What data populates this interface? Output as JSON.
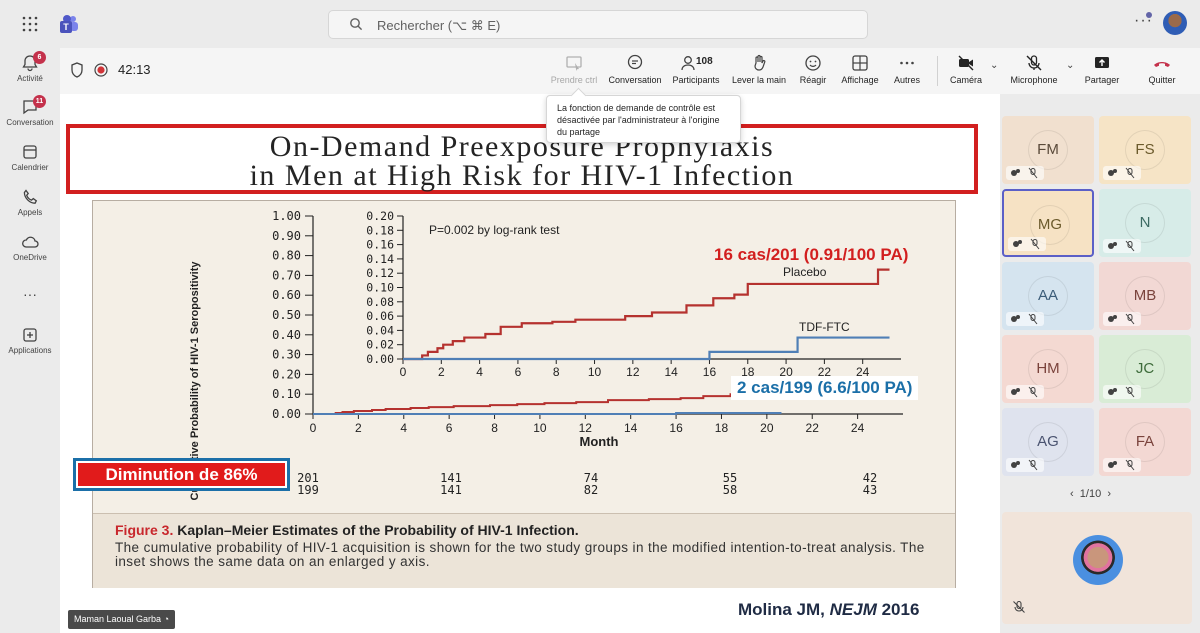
{
  "search": {
    "placeholder": "Rechercher (⌥ ⌘ E)"
  },
  "rail": {
    "items": [
      {
        "label": "Activité",
        "badge": "6",
        "icon": "bell-icon"
      },
      {
        "label": "Conversation",
        "badge": "11",
        "icon": "chat-icon"
      },
      {
        "label": "Calendrier",
        "badge": "",
        "icon": "calendar-icon"
      },
      {
        "label": "Appels",
        "badge": "",
        "icon": "phone-icon"
      },
      {
        "label": "OneDrive",
        "badge": "",
        "icon": "cloud-icon"
      },
      {
        "label": "Applications",
        "badge": "",
        "icon": "add-icon"
      }
    ]
  },
  "callbar": {
    "timer": "42:13",
    "buttons": {
      "prendre": "Prendre ctrl",
      "conversation": "Conversation",
      "participants": "Participants",
      "participants_count": "108",
      "lever": "Lever la main",
      "reagir": "Réagir",
      "affichage": "Affichage",
      "autres": "Autres",
      "camera": "Caméra",
      "micro": "Microphone",
      "partager": "Partager",
      "quitter": "Quitter"
    }
  },
  "tooltip": {
    "text": "La fonction de demande de contrôle est désactivée par l'administrateur à l'origine du partage"
  },
  "slide": {
    "title_line1": "On-Demand Preexposure Prophylaxis",
    "title_line2": "in Men at High Risk for HIV-1 Infection",
    "placebo_annotation": "16 cas/201 (0.91/100 PA)",
    "tdf_annotation": "2 cas/199 (6.6/100 PA)",
    "diminution": "Diminution de 86%",
    "citation_author": "Molina JM, ",
    "citation_journal": "NEJM",
    "citation_year": " 2016",
    "fig_label": "Figure 3.",
    "fig_title": " Kaplan–Meier Estimates of the Probability of HIV-1 Infection.",
    "fig_text": "The cumulative probability of HIV-1 acquisition is shown for the two study groups in the modified intention-to-treat analysis. The inset shows the same data on an enlarged y axis.",
    "risk_row1": [
      "201",
      "141",
      "74",
      "55",
      "42"
    ],
    "risk_row2": [
      "199",
      "141",
      "82",
      "58",
      "43"
    ],
    "presenter": "Maman Laoual Garba"
  },
  "chart_data": {
    "type": "line",
    "title": "Kaplan–Meier Estimates of the Probability of HIV-1 Infection",
    "ylabel": "Cumulative Probability of HIV-1 Seropositivity",
    "xlabel": "Month",
    "x_ticks": [
      0,
      2,
      4,
      6,
      8,
      10,
      12,
      14,
      16,
      18,
      20,
      22,
      24
    ],
    "main": {
      "ylim": [
        0,
        1.0
      ],
      "y_ticks": [
        "0.00",
        "0.10",
        "0.20",
        "0.30",
        "0.40",
        "0.50",
        "0.60",
        "0.70",
        "0.80",
        "0.90",
        "1.00"
      ],
      "series": [
        {
          "name": "Placebo",
          "color": "#b5322f",
          "x": [
            0,
            1,
            1.3,
            1.8,
            2.6,
            3.2,
            4.3,
            5.1,
            6.2,
            7.8,
            9,
            10.2,
            11.6,
            13,
            14.8,
            16.2,
            17.2,
            18.4,
            20.6,
            25.4
          ],
          "y": [
            0,
            0.005,
            0.01,
            0.015,
            0.02,
            0.025,
            0.03,
            0.035,
            0.04,
            0.045,
            0.05,
            0.055,
            0.06,
            0.07,
            0.075,
            0.08,
            0.09,
            0.1,
            0.12,
            0.13
          ]
        },
        {
          "name": "TDF-FTC",
          "color": "#4f7fb6",
          "x": [
            0,
            16,
            17,
            20.6
          ],
          "y": [
            0,
            0.005,
            0.005,
            0.01
          ]
        }
      ]
    },
    "inset": {
      "ylim": [
        0,
        0.2
      ],
      "y_ticks": [
        "0.00",
        "0.02",
        "0.04",
        "0.06",
        "0.08",
        "0.10",
        "0.12",
        "0.14",
        "0.16",
        "0.18",
        "0.20"
      ],
      "x_ticks": [
        0,
        2,
        4,
        6,
        8,
        10,
        12,
        14,
        16,
        18,
        20,
        22,
        24
      ],
      "annotation": "P=0.002 by log-rank test",
      "series": [
        {
          "name": "Placebo",
          "color": "#b5322f",
          "x": [
            0,
            1,
            1.3,
            1.8,
            2.1,
            2.6,
            3.2,
            4.3,
            5.1,
            6.2,
            7.8,
            9,
            10.2,
            11.6,
            13,
            14.8,
            16.2,
            17.3,
            18,
            20.6,
            24.8,
            25.4
          ],
          "y": [
            0,
            0.005,
            0.01,
            0.015,
            0.02,
            0.025,
            0.03,
            0.035,
            0.045,
            0.05,
            0.052,
            0.055,
            0.055,
            0.06,
            0.065,
            0.075,
            0.085,
            0.09,
            0.105,
            0.105,
            0.125,
            0.125
          ]
        },
        {
          "name": "TDF-FTC",
          "color": "#4f7fb6",
          "x": [
            0,
            16,
            20.6,
            25.4
          ],
          "y": [
            0,
            0.01,
            0.03,
            0.03
          ]
        }
      ],
      "labels": [
        "Placebo",
        "TDF-FTC"
      ]
    }
  },
  "tiles": [
    {
      "initials": "FM",
      "color": "#f1e0cf",
      "text": "#5a4a3a"
    },
    {
      "initials": "FS",
      "color": "#f6e4c6",
      "text": "#6b5a2c"
    },
    {
      "initials": "MG",
      "color": "#f6e2c4",
      "text": "#6b5a2c",
      "selected": true
    },
    {
      "initials": "N",
      "color": "#d7ece8",
      "text": "#3c6b63"
    },
    {
      "initials": "AA",
      "color": "#d5e4ef",
      "text": "#3b5c78"
    },
    {
      "initials": "MB",
      "color": "#f2d8d4",
      "text": "#7a433c"
    },
    {
      "initials": "HM",
      "color": "#f4d9d2",
      "text": "#7a433c"
    },
    {
      "initials": "JC",
      "color": "#d9ecd6",
      "text": "#3d6b3a"
    },
    {
      "initials": "AG",
      "color": "#dfe3ee",
      "text": "#4a5370"
    },
    {
      "initials": "FA",
      "color": "#f3d8d3",
      "text": "#7a433c"
    }
  ],
  "pager": {
    "text": "1/10"
  }
}
